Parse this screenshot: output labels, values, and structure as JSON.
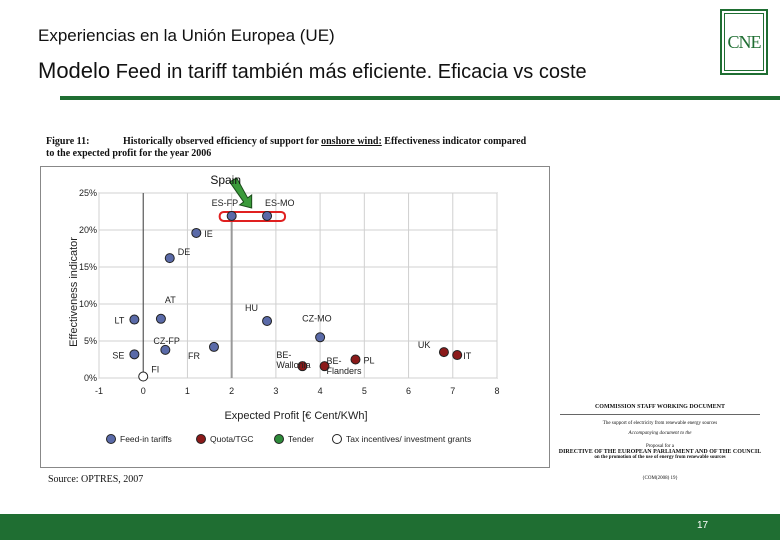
{
  "slide": {
    "title": "Experiencias en la Unión Europea (UE)",
    "subtitle_lead": "Modelo",
    "subtitle_rest": " Feed in tariff también más eficiente. Eficacia vs coste",
    "logo_text": "CNE",
    "page_number": "17",
    "accent_color": "#1f6e32"
  },
  "figure": {
    "number": "Figure 11:",
    "caption_pre": "Historically observed efficiency of support for ",
    "caption_underlined": "onshore wind:",
    "caption_post": " Effectiveness indicator compared",
    "caption_line2": "to the expected profit for the year 2006",
    "source": "Source: OPTRES, 2007",
    "callout": "Spain"
  },
  "chart_data": {
    "type": "scatter",
    "xlabel": "Expected Profit [€ Cent/KWh]",
    "ylabel": "Effectiveness indicator",
    "xlim": [
      -1,
      8
    ],
    "ylim": [
      0,
      0.25
    ],
    "x_ticks": [
      "-1",
      "0",
      "1",
      "2",
      "3",
      "4",
      "5",
      "6",
      "7",
      "8"
    ],
    "y_ticks": [
      "0%",
      "5%",
      "10%",
      "15%",
      "20%",
      "25%"
    ],
    "grid": true,
    "legend": [
      {
        "label": "Feed-in tariffs",
        "color": "#5a6aa8"
      },
      {
        "label": "Quota/TGC",
        "color": "#8b1a1a"
      },
      {
        "label": "Tender",
        "color": "#2e8b3a"
      },
      {
        "label": "Tax incentives/ investment grants",
        "color": "#ffffff"
      }
    ],
    "points": [
      {
        "label": "ES-FP",
        "x": 2.0,
        "y": 0.219,
        "type": "fit"
      },
      {
        "label": "ES-MO",
        "x": 2.8,
        "y": 0.219,
        "type": "fit"
      },
      {
        "label": "IE",
        "x": 1.2,
        "y": 0.196,
        "type": "fit"
      },
      {
        "label": "DE",
        "x": 0.6,
        "y": 0.162,
        "type": "fit"
      },
      {
        "label": "AT",
        "x": 0.4,
        "y": 0.08,
        "type": "fit"
      },
      {
        "label": "LT",
        "x": -0.2,
        "y": 0.079,
        "type": "fit"
      },
      {
        "label": "HU",
        "x": 2.8,
        "y": 0.077,
        "type": "fit"
      },
      {
        "label": "FR",
        "x": 1.6,
        "y": 0.042,
        "type": "fit"
      },
      {
        "label": "CZ-FP",
        "x": 0.5,
        "y": 0.038,
        "type": "fit"
      },
      {
        "label": "SE",
        "x": -0.2,
        "y": 0.032,
        "type": "fit"
      },
      {
        "label": "FI",
        "x": 0.0,
        "y": 0.002,
        "type": "tax"
      },
      {
        "label": "CZ-MO",
        "x": 4.0,
        "y": 0.055,
        "type": "fit"
      },
      {
        "label": "BE-Wallonia",
        "x": 3.6,
        "y": 0.016,
        "type": "quota"
      },
      {
        "label": "BE-Flanders",
        "x": 4.1,
        "y": 0.016,
        "type": "quota"
      },
      {
        "label": "PL",
        "x": 4.8,
        "y": 0.025,
        "type": "quota"
      },
      {
        "label": "UK",
        "x": 6.8,
        "y": 0.035,
        "type": "quota"
      },
      {
        "label": "IT",
        "x": 7.1,
        "y": 0.031,
        "type": "quota"
      }
    ]
  },
  "document": {
    "line1": "COMMISSION STAFF WORKING DOCUMENT",
    "line2": "The support of electricity from renewable energy sources",
    "line3": "Accompanying document to the",
    "line4": "Proposal for a",
    "line5": "DIRECTIVE OF THE EUROPEAN PARLIAMENT AND OF THE COUNCIL",
    "line6": "on the promotion of the use of energy from renewable sources",
    "line7": "{COM(2008) 19}"
  }
}
